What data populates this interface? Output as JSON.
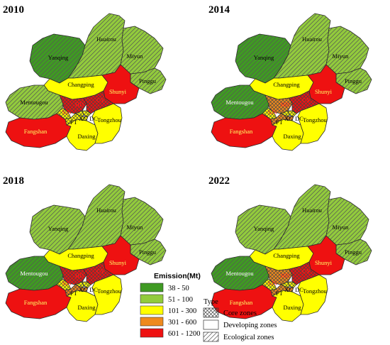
{
  "colors": {
    "c1": "#3f9a23",
    "c2": "#92cb3c",
    "c3": "#ffff00",
    "c4": "#ee8a1e",
    "c5": "#ee1111",
    "text_dark": "#000000",
    "text_red": "#ff2020",
    "text_yellow": "#ffff66",
    "text_on_green": "#ffffff"
  },
  "legend": {
    "emission_title": "Emission(Mt)",
    "classes": [
      {
        "label": "38 - 50",
        "color_key": "c1"
      },
      {
        "label": "51 - 100",
        "color_key": "c2"
      },
      {
        "label": "101 - 300",
        "color_key": "c3"
      },
      {
        "label": "301 - 600",
        "color_key": "c4"
      },
      {
        "label": "601 - 1200",
        "color_key": "c5"
      }
    ],
    "type_title": "Type",
    "types": [
      {
        "label": "Core zones",
        "pattern": "crosshatch"
      },
      {
        "label": "Developing zones",
        "pattern": "none"
      },
      {
        "label": "Ecological zones",
        "pattern": "diagonal"
      }
    ]
  },
  "district_labels": {
    "Huairou": "Huairou",
    "Yanqing": "Yanqing",
    "Miyun": "Miyun",
    "Pinggu": "Pinggu",
    "Changping": "Changping",
    "Shunyi": "Shunyi",
    "Mentougou": "Mentougou",
    "Fangshan": "Fangshan",
    "Daxing": "Daxing",
    "Tongzhou": "Tongzhou",
    "HD": "HD",
    "CY": "CY",
    "SJS": "SJS",
    "FT": "FT",
    "XC": "XC",
    "DC": "DC"
  },
  "maps": [
    {
      "year": "2010",
      "class": {
        "Yanqing": "c1",
        "Huairou": "c2",
        "Miyun": "c2",
        "Pinggu": "c2",
        "Changping": "c3",
        "Shunyi": "c5",
        "Mentougou": "c2",
        "Fangshan": "c5",
        "Daxing": "c3",
        "Tongzhou": "c3",
        "HD": "c5",
        "CY": "c5",
        "SJS": "c3",
        "FT": "c3",
        "XC": "c3",
        "DC": "c3"
      }
    },
    {
      "year": "2014",
      "class": {
        "Yanqing": "c1",
        "Huairou": "c2",
        "Miyun": "c2",
        "Pinggu": "c2",
        "Changping": "c3",
        "Shunyi": "c5",
        "Mentougou": "c1",
        "Fangshan": "c5",
        "Daxing": "c3",
        "Tongzhou": "c3",
        "HD": "c4",
        "CY": "c5",
        "SJS": "c3",
        "FT": "c4",
        "XC": "c3",
        "DC": "c3"
      }
    },
    {
      "year": "2018",
      "class": {
        "Yanqing": "c2",
        "Huairou": "c2",
        "Miyun": "c2",
        "Pinggu": "c2",
        "Changping": "c3",
        "Shunyi": "c5",
        "Mentougou": "c1",
        "Fangshan": "c5",
        "Daxing": "c3",
        "Tongzhou": "c3",
        "HD": "c5",
        "CY": "c5",
        "SJS": "c3",
        "FT": "c4",
        "XC": "c3",
        "DC": "c3"
      }
    },
    {
      "year": "2022",
      "class": {
        "Yanqing": "c2",
        "Huairou": "c2",
        "Miyun": "c2",
        "Pinggu": "c2",
        "Changping": "c3",
        "Shunyi": "c5",
        "Mentougou": "c1",
        "Fangshan": "c5",
        "Daxing": "c3",
        "Tongzhou": "c3",
        "HD": "c4",
        "CY": "c5",
        "SJS": "c3",
        "FT": "c4",
        "XC": "c3",
        "DC": "c3"
      }
    }
  ]
}
